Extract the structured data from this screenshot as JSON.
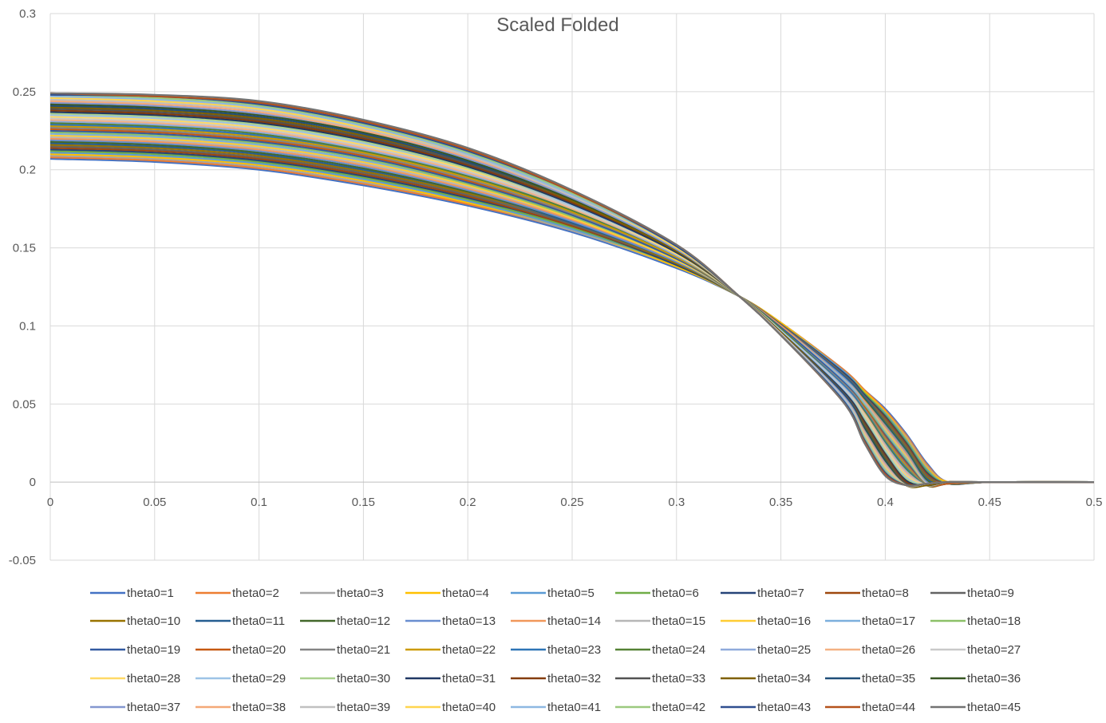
{
  "chart_data": {
    "type": "line",
    "title": "Scaled Folded",
    "xlim": [
      0,
      0.5
    ],
    "ylim": [
      -0.05,
      0.3
    ],
    "x_ticks": [
      "0",
      "0.05",
      "0.1",
      "0.15",
      "0.2",
      "0.25",
      "0.3",
      "0.35",
      "0.4",
      "0.45",
      "0.5"
    ],
    "y_ticks": [
      "-0.05",
      "0",
      "0.05",
      "0.1",
      "0.15",
      "0.2",
      "0.25",
      "0.3"
    ],
    "grid": true,
    "legend_position": "bottom",
    "x": [
      0,
      0.05,
      0.1,
      0.15,
      0.2,
      0.25,
      0.3,
      0.33,
      0.35,
      0.38,
      0.39,
      0.4,
      0.41,
      0.42,
      0.43,
      0.45,
      0.5
    ],
    "series": [
      {
        "name": "theta0=1",
        "color": "#4472C4",
        "values": [
          0.207,
          0.205,
          0.2,
          0.19,
          0.177,
          0.16,
          0.137,
          0.119,
          0.102,
          0.072,
          0.059,
          0.047,
          0.031,
          0.012,
          0.0,
          0.0,
          0.0
        ]
      },
      {
        "name": "theta0=2",
        "color": "#ED7D31",
        "values": [
          0.208,
          0.206,
          0.201,
          0.191,
          0.178,
          0.161,
          0.138,
          0.119,
          0.102,
          0.072,
          0.059,
          0.046,
          0.03,
          0.011,
          0.0,
          0.0,
          0.0
        ]
      },
      {
        "name": "theta0=3",
        "color": "#A5A5A5",
        "values": [
          0.209,
          0.207,
          0.202,
          0.192,
          0.179,
          0.161,
          0.138,
          0.119,
          0.102,
          0.071,
          0.058,
          0.045,
          0.029,
          0.01,
          0.0,
          0.0,
          0.0
        ]
      },
      {
        "name": "theta0=4",
        "color": "#FFC000",
        "values": [
          0.21,
          0.208,
          0.203,
          0.193,
          0.179,
          0.162,
          0.138,
          0.119,
          0.102,
          0.071,
          0.058,
          0.045,
          0.028,
          0.009,
          0.0,
          0.0,
          0.0
        ]
      },
      {
        "name": "theta0=5",
        "color": "#5B9BD5",
        "values": [
          0.211,
          0.209,
          0.204,
          0.194,
          0.18,
          0.162,
          0.139,
          0.119,
          0.101,
          0.071,
          0.057,
          0.044,
          0.027,
          0.008,
          -0.001,
          0.0,
          0.0
        ]
      },
      {
        "name": "theta0=6",
        "color": "#70AD47",
        "values": [
          0.212,
          0.21,
          0.205,
          0.195,
          0.181,
          0.163,
          0.139,
          0.119,
          0.101,
          0.07,
          0.057,
          0.043,
          0.026,
          0.007,
          -0.001,
          0.0,
          0.0
        ]
      },
      {
        "name": "theta0=7",
        "color": "#264478",
        "values": [
          0.213,
          0.211,
          0.206,
          0.196,
          0.182,
          0.164,
          0.139,
          0.119,
          0.101,
          0.07,
          0.056,
          0.042,
          0.025,
          0.006,
          -0.001,
          0.0,
          0.0
        ]
      },
      {
        "name": "theta0=8",
        "color": "#9E480E",
        "values": [
          0.214,
          0.212,
          0.207,
          0.197,
          0.183,
          0.164,
          0.14,
          0.119,
          0.101,
          0.069,
          0.055,
          0.041,
          0.024,
          0.005,
          -0.001,
          0.0,
          0.0
        ]
      },
      {
        "name": "theta0=9",
        "color": "#636363",
        "values": [
          0.215,
          0.213,
          0.208,
          0.198,
          0.184,
          0.165,
          0.14,
          0.119,
          0.101,
          0.069,
          0.055,
          0.04,
          0.023,
          0.004,
          -0.001,
          0.0,
          0.0
        ]
      },
      {
        "name": "theta0=10",
        "color": "#997300",
        "values": [
          0.216,
          0.214,
          0.209,
          0.199,
          0.185,
          0.166,
          0.14,
          0.119,
          0.1,
          0.068,
          0.054,
          0.039,
          0.022,
          0.003,
          -0.001,
          0.0,
          0.0
        ]
      },
      {
        "name": "theta0=11",
        "color": "#255E91",
        "values": [
          0.217,
          0.215,
          0.21,
          0.2,
          0.186,
          0.166,
          0.141,
          0.119,
          0.1,
          0.068,
          0.054,
          0.038,
          0.021,
          0.002,
          -0.001,
          0.0,
          0.0
        ]
      },
      {
        "name": "theta0=12",
        "color": "#43682B",
        "values": [
          0.218,
          0.216,
          0.211,
          0.201,
          0.186,
          0.167,
          0.141,
          0.119,
          0.1,
          0.067,
          0.053,
          0.037,
          0.02,
          0.001,
          -0.001,
          0.0,
          0.0
        ]
      },
      {
        "name": "theta0=13",
        "color": "#698ED0",
        "values": [
          0.219,
          0.217,
          0.212,
          0.202,
          0.187,
          0.167,
          0.141,
          0.119,
          0.1,
          0.067,
          0.052,
          0.036,
          0.019,
          0.0,
          -0.001,
          0.0,
          0.0
        ]
      },
      {
        "name": "theta0=14",
        "color": "#F1975A",
        "values": [
          0.22,
          0.218,
          0.213,
          0.203,
          0.188,
          0.168,
          0.142,
          0.119,
          0.1,
          0.066,
          0.052,
          0.035,
          0.018,
          -0.001,
          -0.001,
          0.0,
          0.0
        ]
      },
      {
        "name": "theta0=15",
        "color": "#B7B7B7",
        "values": [
          0.221,
          0.219,
          0.214,
          0.204,
          0.189,
          0.169,
          0.142,
          0.119,
          0.099,
          0.066,
          0.051,
          0.034,
          0.017,
          -0.001,
          -0.001,
          0.0,
          0.0
        ]
      },
      {
        "name": "theta0=16",
        "color": "#FFCD33",
        "values": [
          0.222,
          0.22,
          0.215,
          0.205,
          0.19,
          0.169,
          0.142,
          0.119,
          0.099,
          0.065,
          0.05,
          0.033,
          0.016,
          -0.002,
          -0.001,
          0.0,
          0.0
        ]
      },
      {
        "name": "theta0=17",
        "color": "#7CAFDD",
        "values": [
          0.223,
          0.221,
          0.216,
          0.206,
          0.191,
          0.17,
          0.143,
          0.119,
          0.099,
          0.065,
          0.05,
          0.032,
          0.015,
          -0.002,
          -0.001,
          0.0,
          0.0
        ]
      },
      {
        "name": "theta0=18",
        "color": "#8CC168",
        "values": [
          0.224,
          0.222,
          0.217,
          0.207,
          0.191,
          0.17,
          0.143,
          0.119,
          0.099,
          0.064,
          0.049,
          0.031,
          0.014,
          -0.002,
          -0.001,
          0.0,
          0.0
        ]
      },
      {
        "name": "theta0=19",
        "color": "#335AA1",
        "values": [
          0.225,
          0.223,
          0.218,
          0.208,
          0.192,
          0.171,
          0.143,
          0.119,
          0.099,
          0.064,
          0.048,
          0.03,
          0.013,
          -0.002,
          -0.001,
          0.0,
          0.0
        ]
      },
      {
        "name": "theta0=20",
        "color": "#C65911",
        "values": [
          0.226,
          0.224,
          0.219,
          0.209,
          0.193,
          0.172,
          0.144,
          0.119,
          0.098,
          0.063,
          0.048,
          0.029,
          0.012,
          -0.002,
          -0.001,
          0.0,
          0.0
        ]
      },
      {
        "name": "theta0=21",
        "color": "#848484",
        "values": [
          0.227,
          0.225,
          0.22,
          0.21,
          0.194,
          0.172,
          0.144,
          0.119,
          0.098,
          0.063,
          0.047,
          0.028,
          0.011,
          -0.002,
          0.0,
          0.0,
          0.0
        ]
      },
      {
        "name": "theta0=22",
        "color": "#CC9A00",
        "values": [
          0.228,
          0.226,
          0.221,
          0.211,
          0.195,
          0.173,
          0.144,
          0.119,
          0.098,
          0.062,
          0.046,
          0.027,
          0.01,
          -0.002,
          0.0,
          0.0,
          0.0
        ]
      },
      {
        "name": "theta0=23",
        "color": "#2E75B6",
        "values": [
          0.229,
          0.227,
          0.222,
          0.212,
          0.196,
          0.174,
          0.145,
          0.119,
          0.098,
          0.062,
          0.046,
          0.026,
          0.009,
          -0.002,
          0.0,
          0.0,
          0.0
        ]
      },
      {
        "name": "theta0=24",
        "color": "#548235",
        "values": [
          0.23,
          0.228,
          0.223,
          0.212,
          0.196,
          0.174,
          0.145,
          0.119,
          0.098,
          0.061,
          0.045,
          0.025,
          0.008,
          -0.002,
          0.0,
          0.0,
          0.0
        ]
      },
      {
        "name": "theta0=25",
        "color": "#8FAADC",
        "values": [
          0.231,
          0.229,
          0.224,
          0.213,
          0.197,
          0.175,
          0.145,
          0.119,
          0.097,
          0.061,
          0.044,
          0.024,
          0.007,
          -0.002,
          0.0,
          0.0,
          0.0
        ]
      },
      {
        "name": "theta0=26",
        "color": "#F4B183",
        "values": [
          0.232,
          0.23,
          0.225,
          0.214,
          0.198,
          0.175,
          0.146,
          0.119,
          0.097,
          0.06,
          0.044,
          0.023,
          0.006,
          -0.002,
          0.0,
          0.0,
          0.0
        ]
      },
      {
        "name": "theta0=27",
        "color": "#C9C9C9",
        "values": [
          0.233,
          0.231,
          0.226,
          0.215,
          0.199,
          0.176,
          0.146,
          0.119,
          0.097,
          0.06,
          0.043,
          0.022,
          0.005,
          -0.002,
          0.0,
          0.0,
          0.0
        ]
      },
      {
        "name": "theta0=28",
        "color": "#FFD966",
        "values": [
          0.234,
          0.232,
          0.227,
          0.216,
          0.2,
          0.177,
          0.146,
          0.119,
          0.097,
          0.059,
          0.042,
          0.021,
          0.004,
          -0.002,
          0.0,
          0.0,
          0.0
        ]
      },
      {
        "name": "theta0=29",
        "color": "#9DC3E6",
        "values": [
          0.235,
          0.233,
          0.228,
          0.217,
          0.201,
          0.177,
          0.147,
          0.119,
          0.097,
          0.059,
          0.041,
          0.02,
          0.003,
          -0.002,
          0.0,
          0.0,
          0.0
        ]
      },
      {
        "name": "theta0=30",
        "color": "#A9D18E",
        "values": [
          0.236,
          0.234,
          0.229,
          0.218,
          0.201,
          0.178,
          0.147,
          0.119,
          0.096,
          0.058,
          0.04,
          0.019,
          0.002,
          -0.002,
          0.0,
          0.0,
          0.0
        ]
      },
      {
        "name": "theta0=31",
        "color": "#203864",
        "values": [
          0.237,
          0.235,
          0.23,
          0.219,
          0.202,
          0.178,
          0.147,
          0.119,
          0.096,
          0.058,
          0.039,
          0.018,
          0.001,
          -0.002,
          0.0,
          0.0,
          0.0
        ]
      },
      {
        "name": "theta0=32",
        "color": "#843C0C",
        "values": [
          0.238,
          0.236,
          0.231,
          0.22,
          0.203,
          0.179,
          0.148,
          0.119,
          0.096,
          0.057,
          0.038,
          0.017,
          0.0,
          -0.002,
          0.0,
          0.0,
          0.0
        ]
      },
      {
        "name": "theta0=33",
        "color": "#525252",
        "values": [
          0.239,
          0.237,
          0.232,
          0.221,
          0.204,
          0.18,
          0.148,
          0.119,
          0.096,
          0.057,
          0.037,
          0.016,
          -0.001,
          -0.002,
          0.0,
          0.0,
          0.0
        ]
      },
      {
        "name": "theta0=34",
        "color": "#7F6000",
        "values": [
          0.24,
          0.238,
          0.233,
          0.222,
          0.205,
          0.18,
          0.148,
          0.119,
          0.096,
          0.056,
          0.036,
          0.015,
          -0.002,
          -0.002,
          0.0,
          0.0,
          0.0
        ]
      },
      {
        "name": "theta0=35",
        "color": "#1F4E79",
        "values": [
          0.241,
          0.239,
          0.234,
          0.223,
          0.205,
          0.181,
          0.149,
          0.119,
          0.095,
          0.056,
          0.035,
          0.014,
          -0.002,
          -0.001,
          0.0,
          0.0,
          0.0
        ]
      },
      {
        "name": "theta0=36",
        "color": "#385723",
        "values": [
          0.242,
          0.24,
          0.235,
          0.224,
          0.206,
          0.181,
          0.149,
          0.119,
          0.095,
          0.055,
          0.034,
          0.013,
          -0.002,
          -0.001,
          0.0,
          0.0,
          0.0
        ]
      },
      {
        "name": "theta0=37",
        "color": "#8497D0",
        "values": [
          0.243,
          0.241,
          0.236,
          0.225,
          0.207,
          0.182,
          0.149,
          0.119,
          0.095,
          0.055,
          0.033,
          0.012,
          -0.002,
          -0.001,
          0.0,
          0.0,
          0.0
        ]
      },
      {
        "name": "theta0=38",
        "color": "#F4A877",
        "values": [
          0.244,
          0.242,
          0.237,
          0.225,
          0.208,
          0.183,
          0.15,
          0.119,
          0.095,
          0.054,
          0.032,
          0.011,
          -0.002,
          -0.001,
          0.0,
          0.0,
          0.0
        ]
      },
      {
        "name": "theta0=39",
        "color": "#C0C0C0",
        "values": [
          0.245,
          0.243,
          0.238,
          0.226,
          0.209,
          0.183,
          0.15,
          0.119,
          0.095,
          0.054,
          0.031,
          0.01,
          -0.002,
          -0.001,
          0.0,
          0.0,
          0.0
        ]
      },
      {
        "name": "theta0=40",
        "color": "#FFD54F",
        "values": [
          0.246,
          0.244,
          0.239,
          0.227,
          0.21,
          0.184,
          0.15,
          0.119,
          0.094,
          0.053,
          0.03,
          0.009,
          -0.002,
          -0.001,
          0.0,
          0.0,
          0.0
        ]
      },
      {
        "name": "theta0=41",
        "color": "#8DB8E2",
        "values": [
          0.247,
          0.245,
          0.24,
          0.228,
          0.21,
          0.184,
          0.151,
          0.119,
          0.094,
          0.053,
          0.029,
          0.008,
          -0.002,
          -0.001,
          0.0,
          0.0,
          0.0
        ]
      },
      {
        "name": "theta0=42",
        "color": "#9BC97E",
        "values": [
          0.248,
          0.246,
          0.241,
          0.229,
          0.211,
          0.185,
          0.151,
          0.119,
          0.094,
          0.052,
          0.028,
          0.007,
          -0.002,
          -0.001,
          0.0,
          0.0,
          0.0
        ]
      },
      {
        "name": "theta0=43",
        "color": "#2F4F8F",
        "values": [
          0.248,
          0.247,
          0.242,
          0.23,
          0.212,
          0.186,
          0.151,
          0.119,
          0.094,
          0.052,
          0.027,
          0.006,
          -0.002,
          -0.001,
          0.0,
          0.0,
          0.0
        ]
      },
      {
        "name": "theta0=44",
        "color": "#B5521B",
        "values": [
          0.249,
          0.247,
          0.243,
          0.231,
          0.213,
          0.186,
          0.152,
          0.119,
          0.094,
          0.051,
          0.026,
          0.005,
          -0.002,
          -0.001,
          0.0,
          0.0,
          0.0
        ]
      },
      {
        "name": "theta0=45",
        "color": "#737373",
        "values": [
          0.249,
          0.248,
          0.244,
          0.232,
          0.214,
          0.187,
          0.152,
          0.119,
          0.094,
          0.051,
          0.025,
          0.004,
          -0.002,
          -0.001,
          0.0,
          0.0,
          0.0
        ]
      }
    ]
  }
}
